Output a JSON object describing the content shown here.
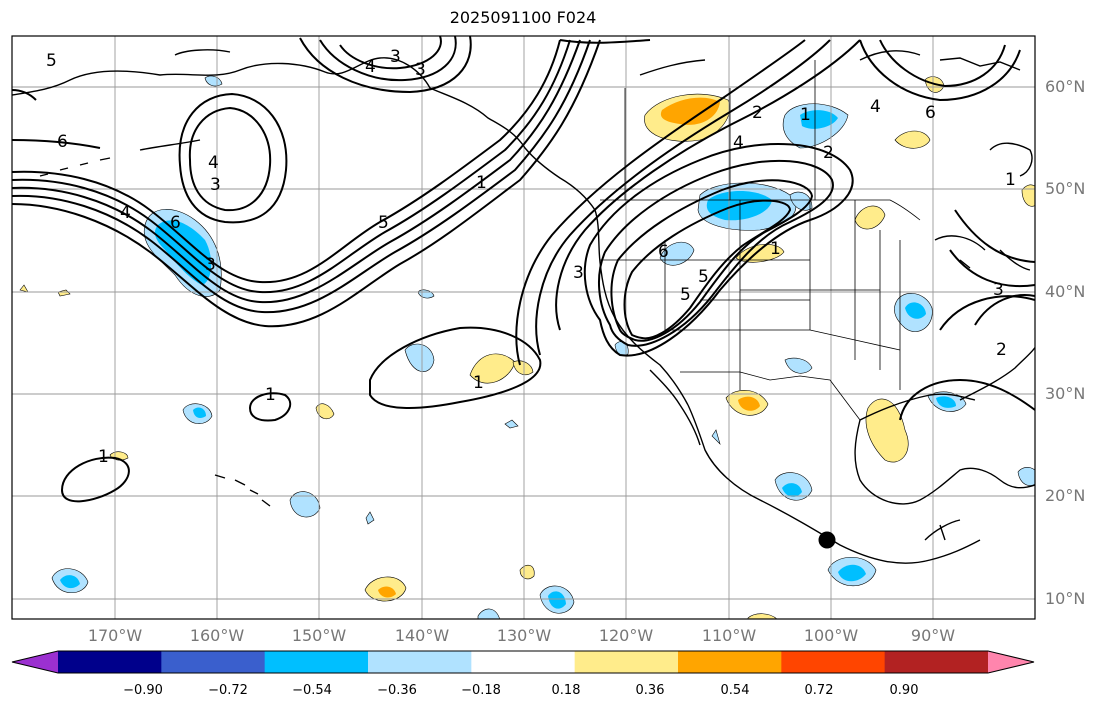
{
  "title": "2025091100 F024",
  "lat_labels": [
    "60°N",
    "50°N",
    "40°N",
    "30°N",
    "20°N",
    "10°N"
  ],
  "lon_labels": [
    "170°W",
    "160°W",
    "150°W",
    "140°W",
    "130°W",
    "120°W",
    "110°W",
    "100°W",
    "90°W"
  ],
  "colorbar": {
    "ticks": [
      "−0.90",
      "−0.72",
      "−0.54",
      "−0.36",
      "−0.18",
      "0.18",
      "0.36",
      "0.54",
      "0.72",
      "0.90"
    ],
    "colors": [
      "#9b30d0",
      "#00008b",
      "#3a5fcd",
      "#00bfff",
      "#b0e2ff",
      "#ffffff",
      "#ffec8b",
      "#ffa500",
      "#ff4500",
      "#b22222",
      "#ff85ad"
    ]
  },
  "contour_labels": [
    "5",
    "3",
    "4",
    "3",
    "6",
    "4",
    "6",
    "5",
    "4",
    "3",
    "1",
    "5",
    "1",
    "1",
    "2",
    "4",
    "1",
    "6",
    "4",
    "3",
    "2",
    "3",
    "5",
    "6",
    "1",
    "1",
    "2",
    "1",
    "3"
  ],
  "marker": "storm-center"
}
